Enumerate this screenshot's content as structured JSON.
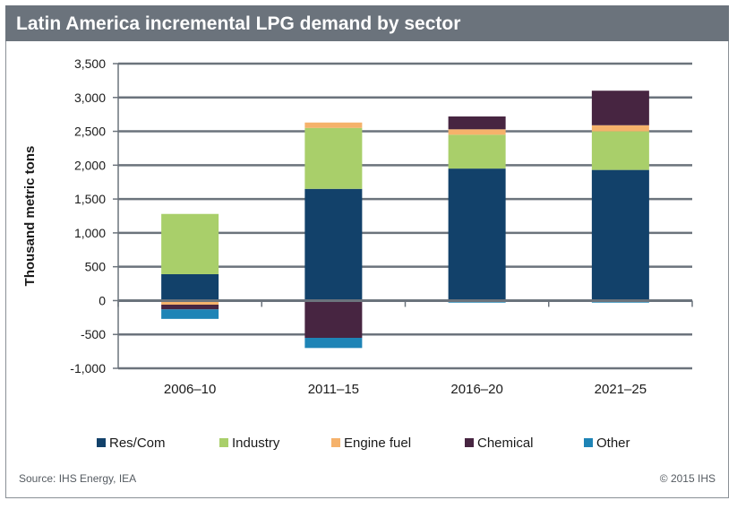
{
  "title": "Latin America incremental LPG demand by sector",
  "footer": {
    "source": "Source: IHS Energy, IEA",
    "copyright": "© 2015 IHS"
  },
  "chart_data": {
    "type": "bar",
    "stacked": true,
    "categories": [
      "2006–10",
      "2011–15",
      "2016–20",
      "2021–25"
    ],
    "ylabel": "Thousand metric tons",
    "ylim": [
      -1000,
      3500
    ],
    "yticks": [
      -1000,
      -500,
      0,
      500,
      1000,
      1500,
      2000,
      2500,
      3000,
      3500
    ],
    "ytick_labels": [
      "-1,000",
      "-500",
      "0",
      "500",
      "1,000",
      "1,500",
      "2,000",
      "2,500",
      "3,000",
      "3,500"
    ],
    "grid": true,
    "legend_position": "bottom",
    "series": [
      {
        "name": "Res/Com",
        "color": "#12416a",
        "values": [
          390,
          1650,
          1950,
          1930
        ]
      },
      {
        "name": "Industry",
        "color": "#a9cf6a",
        "values": [
          890,
          900,
          500,
          570
        ]
      },
      {
        "name": "Engine fuel",
        "color": "#f5b26b",
        "values": [
          -60,
          80,
          80,
          90
        ]
      },
      {
        "name": "Chemical",
        "color": "#472541",
        "values": [
          -70,
          -550,
          190,
          510
        ]
      },
      {
        "name": "Other",
        "color": "#1e84b6",
        "values": [
          -140,
          -150,
          -30,
          -30
        ]
      }
    ]
  }
}
